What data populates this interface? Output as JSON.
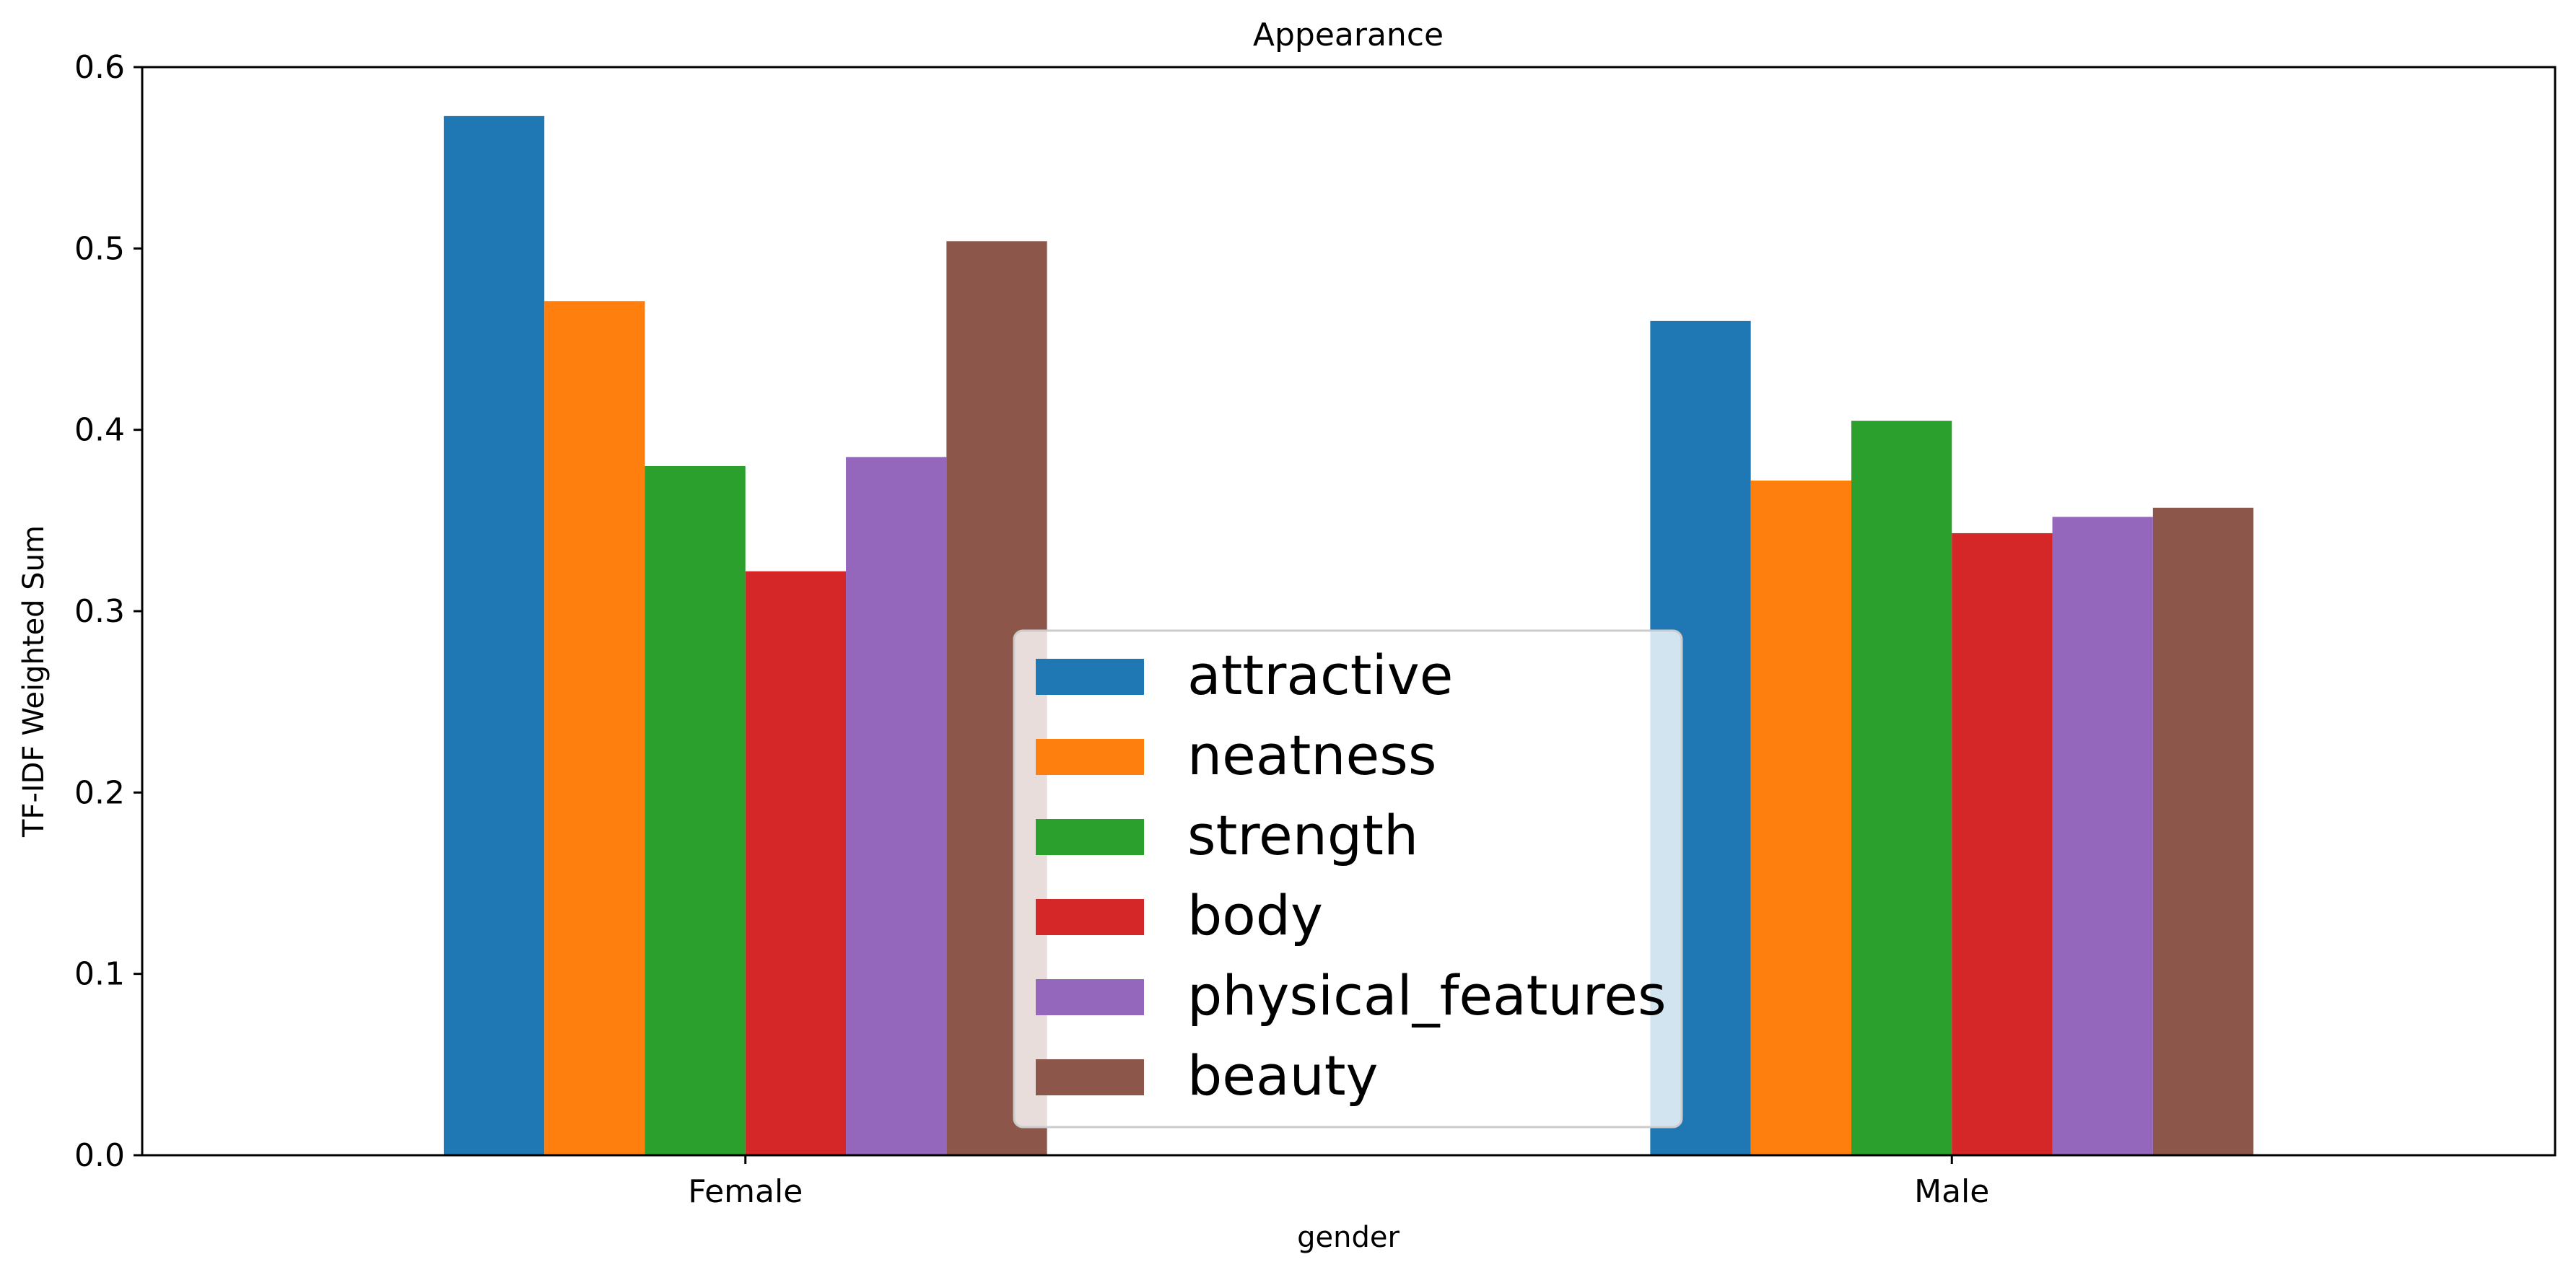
{
  "chart_data": {
    "type": "bar",
    "title": "Appearance",
    "xlabel": "gender",
    "ylabel": "TF-IDF Weighted Sum",
    "categories": [
      "Female",
      "Male"
    ],
    "ylim": [
      0,
      0.6
    ],
    "yticks": [
      "0.0",
      "0.1",
      "0.2",
      "0.3",
      "0.4",
      "0.5",
      "0.6"
    ],
    "grid": false,
    "legend_placement": "lower center",
    "series": [
      {
        "name": "attractive",
        "color": "#1f77b4",
        "values": [
          0.573,
          0.46
        ]
      },
      {
        "name": "neatness",
        "color": "#ff7f0e",
        "values": [
          0.471,
          0.372
        ]
      },
      {
        "name": "strength",
        "color": "#2ca02c",
        "values": [
          0.38,
          0.405
        ]
      },
      {
        "name": "body",
        "color": "#d62728",
        "values": [
          0.322,
          0.343
        ]
      },
      {
        "name": "physical_features",
        "color": "#9467bd",
        "values": [
          0.385,
          0.352
        ]
      },
      {
        "name": "beauty",
        "color": "#8c564b",
        "values": [
          0.504,
          0.357
        ]
      }
    ]
  }
}
